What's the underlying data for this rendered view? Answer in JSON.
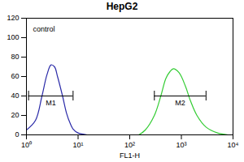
{
  "chart_data": {
    "type": "line",
    "title": "HepG2",
    "x_label": "FL1-H",
    "log": "x",
    "xlim": [
      1,
      10000
    ],
    "xticks": [
      {
        "value": 1,
        "label": "10⁰"
      },
      {
        "value": 10,
        "label": "10¹"
      },
      {
        "value": 100,
        "label": "10²"
      },
      {
        "value": 1000,
        "label": "10³"
      },
      {
        "value": 10000,
        "label": "10⁴"
      }
    ],
    "ylim": [
      0,
      120
    ],
    "yticks": [
      0,
      20,
      40,
      60,
      80,
      100,
      120
    ],
    "series": [
      {
        "name": "control",
        "color": "#2a2aa8",
        "x": [
          1,
          1.5,
          2,
          2.5,
          3,
          3.5,
          4,
          5,
          6,
          7,
          8,
          10,
          15
        ],
        "values": [
          5,
          15,
          40,
          62,
          72,
          70,
          60,
          40,
          22,
          12,
          6,
          2,
          0
        ]
      },
      {
        "color": "#33cc33",
        "x": [
          150,
          200,
          300,
          400,
          500,
          600,
          700,
          900,
          1200,
          1500,
          2000,
          3000,
          5000,
          8000
        ],
        "values": [
          0,
          5,
          20,
          40,
          58,
          65,
          68,
          64,
          50,
          35,
          20,
          8,
          2,
          0
        ]
      }
    ],
    "gates": [
      {
        "label": "M1",
        "x": [
          1.1,
          8
        ],
        "y": 40
      },
      {
        "label": "M2",
        "x": [
          300,
          3000
        ],
        "y": 40
      }
    ]
  }
}
